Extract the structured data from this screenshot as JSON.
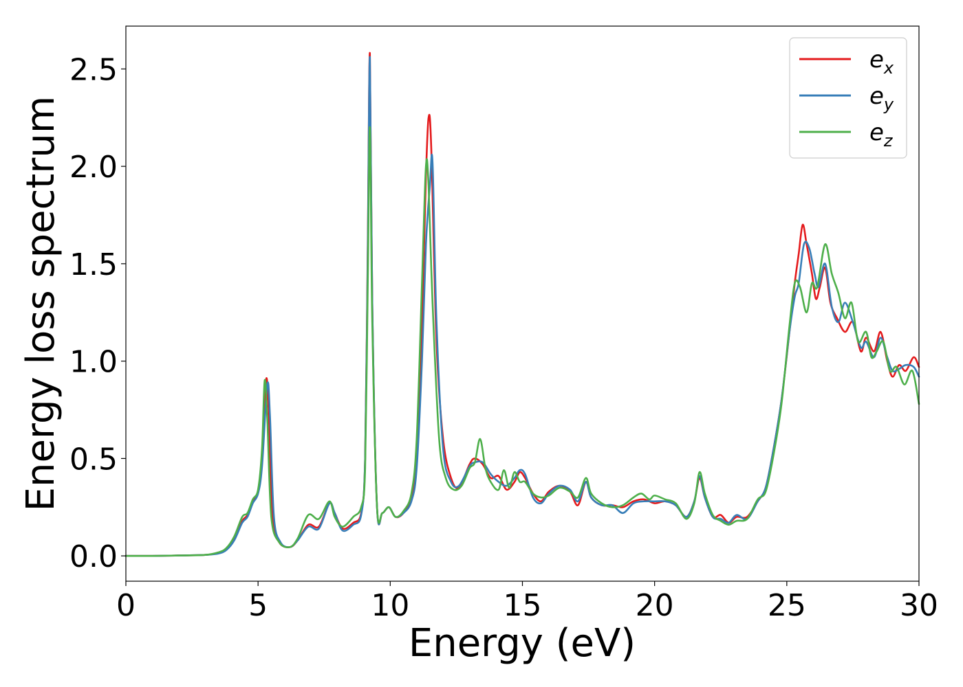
{
  "chart_data": {
    "type": "line",
    "title": "",
    "xlabel": "Energy (eV)",
    "ylabel": "Energy loss spectrum",
    "xlim": [
      0,
      30
    ],
    "ylim": [
      -0.13,
      2.72
    ],
    "x_ticks": [
      0,
      5,
      10,
      15,
      20,
      25,
      30
    ],
    "x_tick_labels": [
      "0",
      "5",
      "10",
      "15",
      "20",
      "25",
      "30"
    ],
    "y_ticks": [
      0.0,
      0.5,
      1.0,
      1.5,
      2.0,
      2.5
    ],
    "y_tick_labels": [
      "0.0",
      "0.5",
      "1.0",
      "1.5",
      "2.0",
      "2.5"
    ],
    "grid": false,
    "legend_position": "top-right",
    "series": [
      {
        "name": "e_x",
        "legend_base": "e",
        "legend_sub": "x",
        "color": "#e41a1c",
        "points": [
          [
            0,
            0.0
          ],
          [
            1,
            0.0
          ],
          [
            2,
            0.002
          ],
          [
            3,
            0.005
          ],
          [
            3.5,
            0.015
          ],
          [
            3.8,
            0.035
          ],
          [
            4.1,
            0.09
          ],
          [
            4.4,
            0.18
          ],
          [
            4.6,
            0.21
          ],
          [
            4.8,
            0.28
          ],
          [
            5.0,
            0.33
          ],
          [
            5.15,
            0.48
          ],
          [
            5.3,
            0.9
          ],
          [
            5.4,
            0.75
          ],
          [
            5.55,
            0.2
          ],
          [
            5.8,
            0.07
          ],
          [
            6.2,
            0.045
          ],
          [
            6.5,
            0.08
          ],
          [
            6.9,
            0.16
          ],
          [
            7.3,
            0.15
          ],
          [
            7.7,
            0.27
          ],
          [
            7.9,
            0.22
          ],
          [
            8.2,
            0.14
          ],
          [
            8.6,
            0.17
          ],
          [
            8.9,
            0.22
          ],
          [
            9.05,
            0.5
          ],
          [
            9.15,
            1.6
          ],
          [
            9.23,
            2.58
          ],
          [
            9.32,
            1.3
          ],
          [
            9.5,
            0.25
          ],
          [
            9.7,
            0.22
          ],
          [
            9.95,
            0.25
          ],
          [
            10.2,
            0.2
          ],
          [
            10.5,
            0.22
          ],
          [
            10.8,
            0.3
          ],
          [
            11.0,
            0.5
          ],
          [
            11.2,
            1.2
          ],
          [
            11.35,
            1.95
          ],
          [
            11.45,
            2.25
          ],
          [
            11.55,
            2.1
          ],
          [
            11.75,
            1.1
          ],
          [
            12.0,
            0.6
          ],
          [
            12.3,
            0.4
          ],
          [
            12.6,
            0.35
          ],
          [
            13.0,
            0.47
          ],
          [
            13.2,
            0.5
          ],
          [
            13.5,
            0.47
          ],
          [
            13.8,
            0.4
          ],
          [
            14.1,
            0.41
          ],
          [
            14.4,
            0.34
          ],
          [
            14.7,
            0.38
          ],
          [
            14.9,
            0.43
          ],
          [
            15.1,
            0.4
          ],
          [
            15.4,
            0.32
          ],
          [
            15.7,
            0.28
          ],
          [
            16.0,
            0.33
          ],
          [
            16.4,
            0.36
          ],
          [
            16.8,
            0.33
          ],
          [
            17.1,
            0.26
          ],
          [
            17.4,
            0.38
          ],
          [
            17.6,
            0.3
          ],
          [
            18.0,
            0.26
          ],
          [
            18.4,
            0.26
          ],
          [
            18.8,
            0.25
          ],
          [
            19.2,
            0.28
          ],
          [
            19.6,
            0.29
          ],
          [
            20.0,
            0.27
          ],
          [
            20.4,
            0.28
          ],
          [
            20.8,
            0.26
          ],
          [
            21.2,
            0.2
          ],
          [
            21.5,
            0.28
          ],
          [
            21.7,
            0.4
          ],
          [
            21.9,
            0.3
          ],
          [
            22.2,
            0.2
          ],
          [
            22.5,
            0.21
          ],
          [
            22.8,
            0.17
          ],
          [
            23.1,
            0.2
          ],
          [
            23.5,
            0.2
          ],
          [
            23.9,
            0.28
          ],
          [
            24.2,
            0.35
          ],
          [
            24.5,
            0.55
          ],
          [
            24.8,
            0.8
          ],
          [
            25.1,
            1.15
          ],
          [
            25.3,
            1.4
          ],
          [
            25.45,
            1.55
          ],
          [
            25.6,
            1.7
          ],
          [
            25.75,
            1.6
          ],
          [
            25.95,
            1.45
          ],
          [
            26.1,
            1.32
          ],
          [
            26.25,
            1.38
          ],
          [
            26.45,
            1.48
          ],
          [
            26.65,
            1.3
          ],
          [
            26.9,
            1.22
          ],
          [
            27.2,
            1.15
          ],
          [
            27.5,
            1.2
          ],
          [
            27.8,
            1.05
          ],
          [
            28.0,
            1.12
          ],
          [
            28.3,
            1.05
          ],
          [
            28.55,
            1.15
          ],
          [
            28.8,
            1.0
          ],
          [
            29.0,
            0.92
          ],
          [
            29.25,
            0.98
          ],
          [
            29.5,
            0.95
          ],
          [
            29.8,
            1.02
          ],
          [
            30.0,
            0.97
          ]
        ]
      },
      {
        "name": "e_y",
        "legend_base": "e",
        "legend_sub": "y",
        "color": "#377eb8",
        "points": [
          [
            0,
            0.0
          ],
          [
            1,
            0.0
          ],
          [
            2,
            0.002
          ],
          [
            3,
            0.005
          ],
          [
            3.5,
            0.012
          ],
          [
            3.8,
            0.03
          ],
          [
            4.1,
            0.08
          ],
          [
            4.4,
            0.17
          ],
          [
            4.6,
            0.2
          ],
          [
            4.8,
            0.27
          ],
          [
            5.0,
            0.32
          ],
          [
            5.15,
            0.46
          ],
          [
            5.35,
            0.88
          ],
          [
            5.45,
            0.72
          ],
          [
            5.6,
            0.2
          ],
          [
            5.85,
            0.07
          ],
          [
            6.2,
            0.045
          ],
          [
            6.5,
            0.08
          ],
          [
            6.9,
            0.15
          ],
          [
            7.3,
            0.14
          ],
          [
            7.7,
            0.27
          ],
          [
            7.9,
            0.22
          ],
          [
            8.2,
            0.13
          ],
          [
            8.6,
            0.16
          ],
          [
            8.9,
            0.21
          ],
          [
            9.05,
            0.5
          ],
          [
            9.15,
            1.55
          ],
          [
            9.23,
            2.56
          ],
          [
            9.32,
            1.3
          ],
          [
            9.5,
            0.25
          ],
          [
            9.7,
            0.22
          ],
          [
            9.95,
            0.25
          ],
          [
            10.2,
            0.2
          ],
          [
            10.5,
            0.22
          ],
          [
            10.8,
            0.28
          ],
          [
            11.0,
            0.45
          ],
          [
            11.2,
            1.0
          ],
          [
            11.35,
            1.6
          ],
          [
            11.5,
            1.9
          ],
          [
            11.6,
            2.02
          ],
          [
            11.75,
            1.2
          ],
          [
            12.0,
            0.55
          ],
          [
            12.3,
            0.38
          ],
          [
            12.6,
            0.36
          ],
          [
            13.0,
            0.46
          ],
          [
            13.2,
            0.48
          ],
          [
            13.5,
            0.48
          ],
          [
            13.8,
            0.42
          ],
          [
            14.1,
            0.38
          ],
          [
            14.4,
            0.36
          ],
          [
            14.7,
            0.4
          ],
          [
            14.9,
            0.44
          ],
          [
            15.1,
            0.42
          ],
          [
            15.4,
            0.3
          ],
          [
            15.7,
            0.27
          ],
          [
            16.0,
            0.32
          ],
          [
            16.4,
            0.36
          ],
          [
            16.8,
            0.34
          ],
          [
            17.1,
            0.28
          ],
          [
            17.4,
            0.38
          ],
          [
            17.6,
            0.3
          ],
          [
            18.0,
            0.26
          ],
          [
            18.4,
            0.26
          ],
          [
            18.8,
            0.22
          ],
          [
            19.2,
            0.27
          ],
          [
            19.6,
            0.28
          ],
          [
            20.0,
            0.28
          ],
          [
            20.4,
            0.28
          ],
          [
            20.8,
            0.26
          ],
          [
            21.2,
            0.2
          ],
          [
            21.5,
            0.28
          ],
          [
            21.7,
            0.41
          ],
          [
            21.9,
            0.3
          ],
          [
            22.2,
            0.2
          ],
          [
            22.5,
            0.19
          ],
          [
            22.8,
            0.17
          ],
          [
            23.1,
            0.21
          ],
          [
            23.5,
            0.19
          ],
          [
            23.9,
            0.28
          ],
          [
            24.2,
            0.35
          ],
          [
            24.5,
            0.55
          ],
          [
            24.8,
            0.8
          ],
          [
            25.1,
            1.15
          ],
          [
            25.3,
            1.33
          ],
          [
            25.45,
            1.4
          ],
          [
            25.65,
            1.6
          ],
          [
            25.85,
            1.58
          ],
          [
            26.05,
            1.45
          ],
          [
            26.2,
            1.38
          ],
          [
            26.45,
            1.5
          ],
          [
            26.7,
            1.28
          ],
          [
            26.95,
            1.2
          ],
          [
            27.2,
            1.3
          ],
          [
            27.5,
            1.2
          ],
          [
            27.8,
            1.07
          ],
          [
            28.0,
            1.1
          ],
          [
            28.3,
            1.02
          ],
          [
            28.55,
            1.12
          ],
          [
            28.8,
            1.02
          ],
          [
            29.0,
            0.95
          ],
          [
            29.25,
            0.96
          ],
          [
            29.5,
            0.98
          ],
          [
            29.8,
            0.97
          ],
          [
            30.0,
            0.92
          ]
        ]
      },
      {
        "name": "e_z",
        "legend_base": "e",
        "legend_sub": "z",
        "color": "#4daf4a",
        "points": [
          [
            0,
            0.0
          ],
          [
            1,
            0.0
          ],
          [
            2,
            0.002
          ],
          [
            3,
            0.005
          ],
          [
            3.5,
            0.018
          ],
          [
            3.8,
            0.04
          ],
          [
            4.1,
            0.1
          ],
          [
            4.4,
            0.2
          ],
          [
            4.6,
            0.22
          ],
          [
            4.8,
            0.29
          ],
          [
            5.0,
            0.34
          ],
          [
            5.15,
            0.55
          ],
          [
            5.25,
            0.9
          ],
          [
            5.35,
            0.7
          ],
          [
            5.5,
            0.2
          ],
          [
            5.8,
            0.07
          ],
          [
            6.2,
            0.045
          ],
          [
            6.5,
            0.09
          ],
          [
            6.9,
            0.21
          ],
          [
            7.3,
            0.19
          ],
          [
            7.7,
            0.28
          ],
          [
            7.9,
            0.2
          ],
          [
            8.2,
            0.15
          ],
          [
            8.6,
            0.2
          ],
          [
            8.9,
            0.25
          ],
          [
            9.05,
            0.45
          ],
          [
            9.15,
            1.4
          ],
          [
            9.23,
            2.2
          ],
          [
            9.32,
            1.2
          ],
          [
            9.5,
            0.25
          ],
          [
            9.7,
            0.22
          ],
          [
            9.95,
            0.25
          ],
          [
            10.2,
            0.2
          ],
          [
            10.5,
            0.23
          ],
          [
            10.8,
            0.32
          ],
          [
            11.0,
            0.6
          ],
          [
            11.2,
            1.4
          ],
          [
            11.35,
            2.0
          ],
          [
            11.45,
            1.9
          ],
          [
            11.6,
            1.3
          ],
          [
            11.85,
            0.6
          ],
          [
            12.1,
            0.4
          ],
          [
            12.4,
            0.34
          ],
          [
            12.7,
            0.36
          ],
          [
            13.0,
            0.45
          ],
          [
            13.2,
            0.48
          ],
          [
            13.4,
            0.6
          ],
          [
            13.6,
            0.45
          ],
          [
            13.8,
            0.38
          ],
          [
            14.1,
            0.34
          ],
          [
            14.3,
            0.44
          ],
          [
            14.5,
            0.35
          ],
          [
            14.7,
            0.43
          ],
          [
            14.9,
            0.38
          ],
          [
            15.1,
            0.38
          ],
          [
            15.4,
            0.32
          ],
          [
            15.7,
            0.3
          ],
          [
            16.0,
            0.31
          ],
          [
            16.4,
            0.35
          ],
          [
            16.8,
            0.33
          ],
          [
            17.1,
            0.3
          ],
          [
            17.4,
            0.4
          ],
          [
            17.6,
            0.32
          ],
          [
            18.0,
            0.27
          ],
          [
            18.4,
            0.25
          ],
          [
            18.8,
            0.26
          ],
          [
            19.2,
            0.3
          ],
          [
            19.5,
            0.32
          ],
          [
            19.8,
            0.29
          ],
          [
            20.0,
            0.31
          ],
          [
            20.4,
            0.29
          ],
          [
            20.8,
            0.27
          ],
          [
            21.2,
            0.19
          ],
          [
            21.5,
            0.27
          ],
          [
            21.7,
            0.43
          ],
          [
            21.9,
            0.32
          ],
          [
            22.2,
            0.21
          ],
          [
            22.5,
            0.18
          ],
          [
            22.8,
            0.16
          ],
          [
            23.1,
            0.18
          ],
          [
            23.5,
            0.19
          ],
          [
            23.9,
            0.29
          ],
          [
            24.2,
            0.33
          ],
          [
            24.5,
            0.52
          ],
          [
            24.8,
            0.78
          ],
          [
            25.1,
            1.18
          ],
          [
            25.3,
            1.4
          ],
          [
            25.5,
            1.38
          ],
          [
            25.75,
            1.25
          ],
          [
            25.95,
            1.4
          ],
          [
            26.15,
            1.38
          ],
          [
            26.45,
            1.6
          ],
          [
            26.7,
            1.45
          ],
          [
            26.95,
            1.35
          ],
          [
            27.2,
            1.22
          ],
          [
            27.45,
            1.3
          ],
          [
            27.7,
            1.1
          ],
          [
            28.0,
            1.15
          ],
          [
            28.2,
            1.02
          ],
          [
            28.4,
            1.05
          ],
          [
            28.65,
            1.1
          ],
          [
            28.9,
            0.95
          ],
          [
            29.15,
            0.97
          ],
          [
            29.45,
            0.88
          ],
          [
            29.75,
            0.95
          ],
          [
            30.0,
            0.78
          ]
        ]
      }
    ]
  }
}
